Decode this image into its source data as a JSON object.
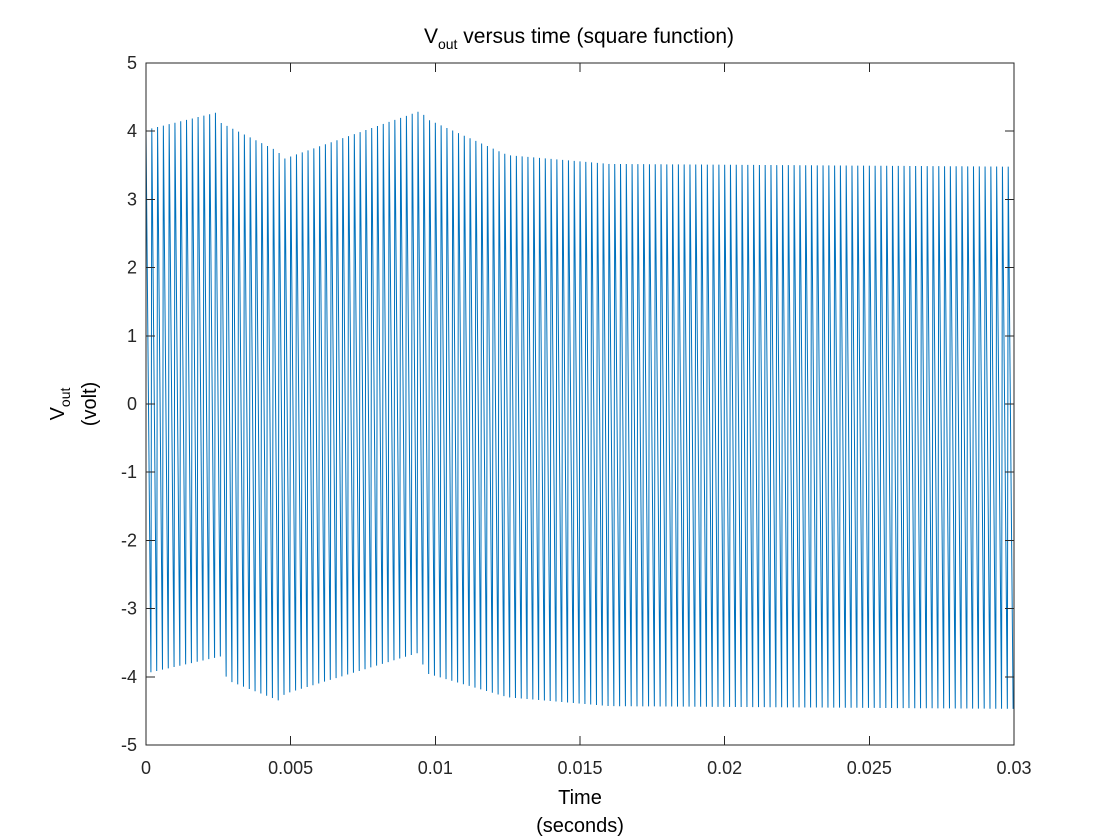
{
  "chart_data": {
    "type": "line",
    "title": {
      "main": "V",
      "sub": "out",
      "rest": " versus time (square function)"
    },
    "xlabel": {
      "line1": "Time",
      "line2": "(seconds)"
    },
    "ylabel": {
      "main": "V",
      "sub": "out",
      "line2": "(volt)"
    },
    "xlim": [
      0,
      0.03
    ],
    "ylim": [
      -5,
      5
    ],
    "xticks": [
      0,
      0.005,
      0.01,
      0.015,
      0.02,
      0.025,
      0.03
    ],
    "xtick_labels": [
      "0",
      "0.005",
      "0.01",
      "0.015",
      "0.02",
      "0.025",
      "0.03"
    ],
    "yticks": [
      -5,
      -4,
      -3,
      -2,
      -1,
      0,
      1,
      2,
      3,
      4,
      5
    ],
    "ytick_labels": [
      "-5",
      "-4",
      "-3",
      "-2",
      "-1",
      "0",
      "1",
      "2",
      "3",
      "4",
      "5"
    ],
    "grid": false,
    "box": true,
    "line_color": "#0072BD",
    "series": [
      {
        "period_s": 0.0002,
        "duty_high": 0.85,
        "peaks": [
          [
            0,
            4.02
          ],
          [
            0.0024,
            4.27
          ],
          [
            0.0026,
            4.12
          ],
          [
            0.0045,
            3.72
          ],
          [
            0.0048,
            3.6
          ],
          [
            0.0095,
            4.3
          ],
          [
            0.0097,
            4.18
          ],
          [
            0.0125,
            3.65
          ],
          [
            0.016,
            3.52
          ],
          [
            0.03,
            3.48
          ]
        ],
        "troughs": [
          [
            0,
            -3.95
          ],
          [
            0.0026,
            -3.7
          ],
          [
            0.0028,
            -4.05
          ],
          [
            0.0046,
            -4.35
          ],
          [
            0.0048,
            -4.25
          ],
          [
            0.0094,
            -3.65
          ],
          [
            0.0097,
            -3.95
          ],
          [
            0.0125,
            -4.3
          ],
          [
            0.016,
            -4.43
          ],
          [
            0.03,
            -4.47
          ]
        ]
      }
    ]
  }
}
